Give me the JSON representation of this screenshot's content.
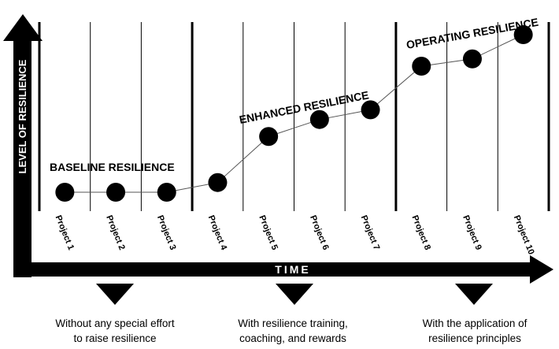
{
  "chart_data": {
    "type": "line",
    "xlabel": "TIME",
    "ylabel": "LEVEL OF RESILIENCE",
    "categories": [
      "Project 1",
      "Project 2",
      "Project 3",
      "Project 4",
      "Project 5",
      "Project 6",
      "Project 7",
      "Project 8",
      "Project 9",
      "Project 10"
    ],
    "values": [
      1.0,
      1.0,
      1.0,
      1.4,
      3.3,
      4.0,
      4.4,
      6.2,
      6.5,
      7.5
    ],
    "ylim": [
      0,
      9
    ],
    "phases": [
      {
        "label": "BASELINE RESILIENCE",
        "projects": [
          1,
          3
        ]
      },
      {
        "label": "ENHANCED RESILIENCE",
        "projects": [
          4,
          7
        ]
      },
      {
        "label": "OPERATING RESILIENCE",
        "projects": [
          8,
          10
        ]
      }
    ],
    "grid": true,
    "legend": "none"
  },
  "captions": [
    {
      "line1": "Without any special effort",
      "line2": "to raise resilience"
    },
    {
      "line1": "With resilience training,",
      "line2": "coaching, and rewards"
    },
    {
      "line1": "With the application of",
      "line2": "resilience principles"
    }
  ],
  "colors": {
    "ink": "#000000",
    "background": "#ffffff",
    "connector": "#555555"
  }
}
